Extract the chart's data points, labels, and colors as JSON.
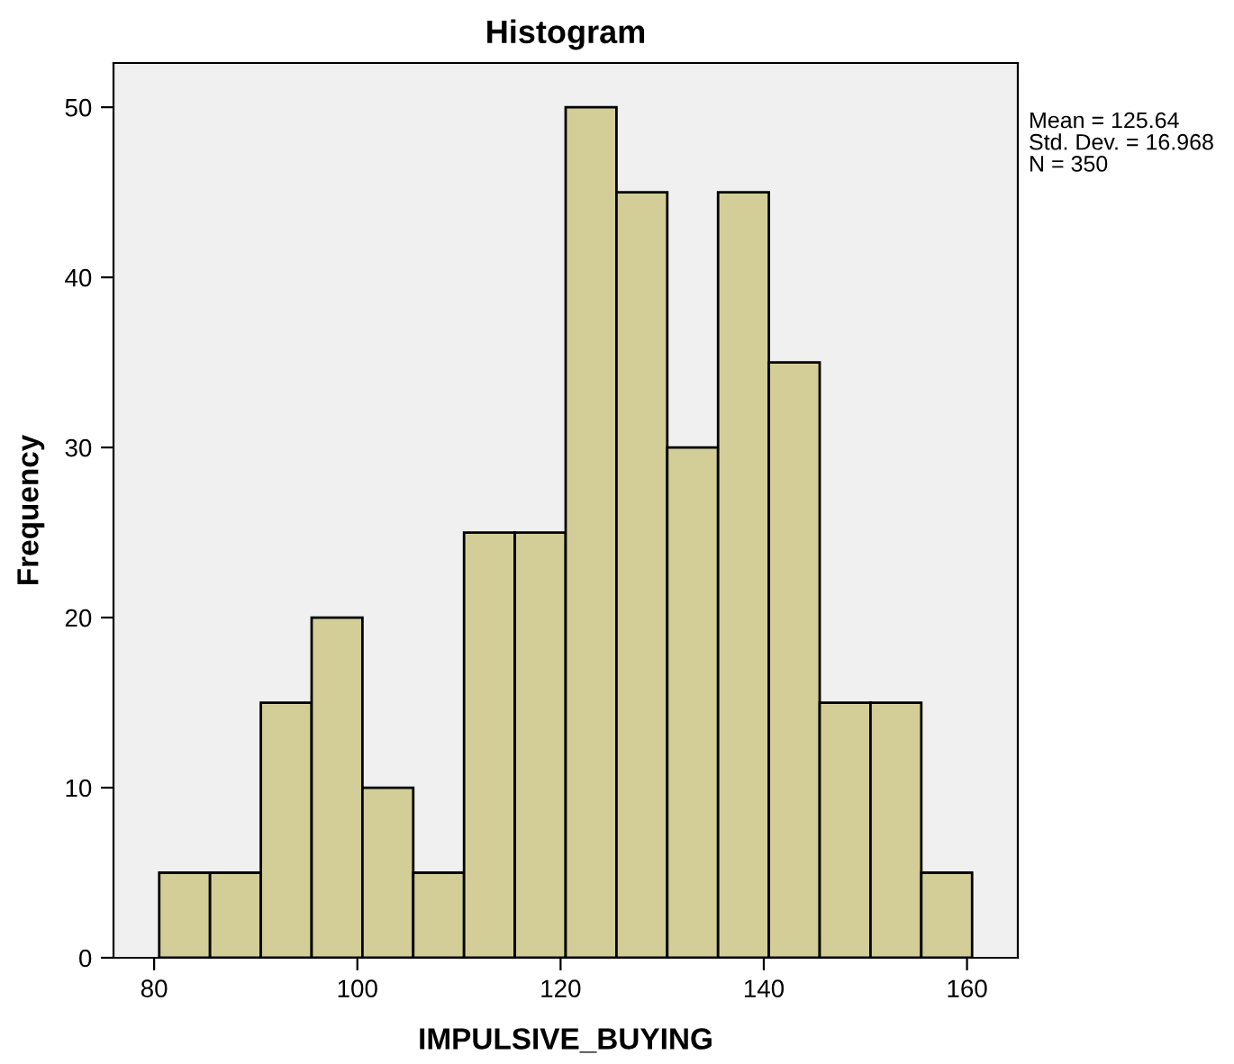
{
  "chart_data": {
    "type": "histogram",
    "title": "Histogram",
    "xlabel": "IMPULSIVE_BUYING",
    "ylabel": "Frequency",
    "bins": [
      80.5,
      85.5,
      90.5,
      95.5,
      100.5,
      105.5,
      110.5,
      115.5,
      120.5,
      125.5,
      130.5,
      135.5,
      140.5,
      145.5,
      150.5,
      155.5,
      160.5
    ],
    "values": [
      5,
      5,
      15,
      20,
      10,
      5,
      25,
      25,
      50,
      45,
      30,
      45,
      35,
      15,
      15,
      5
    ],
    "color": "#d3ce97",
    "xlim": [
      76,
      165
    ],
    "xticks": [
      80,
      100,
      120,
      140,
      160
    ],
    "ylim": [
      0,
      52.6
    ],
    "yticks": [
      0,
      10,
      20,
      30,
      40,
      50
    ],
    "grid": false,
    "annotations": [
      "Mean = 125.64\nStd. Dev. = 16.968\nN = 350"
    ]
  }
}
